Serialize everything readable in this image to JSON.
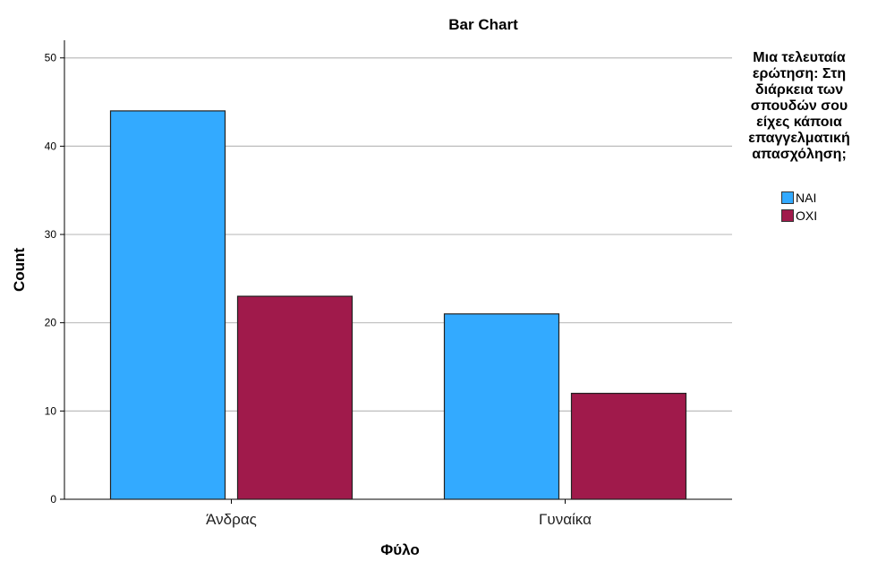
{
  "chart_data": {
    "type": "bar",
    "title": "Bar Chart",
    "xlabel": "Φύλο",
    "ylabel": "Count",
    "categories": [
      "Άνδρας",
      "Γυναίκα"
    ],
    "series": [
      {
        "name": "ΝΑΙ",
        "values": [
          44,
          21
        ],
        "color": "#33aaff"
      },
      {
        "name": "ΟΧΙ",
        "values": [
          23,
          12
        ],
        "color": "#a01a4b"
      }
    ],
    "ylim": [
      0,
      52
    ],
    "yticks": [
      0,
      10,
      20,
      30,
      40,
      50
    ],
    "grid": true,
    "legend": {
      "title": "Μια τελευταία ερώτηση: Στη διάρκεια των σπουδών σου είχες κάποια επαγγελματική απασχόληση;",
      "title_lines": [
        "Μια τελευταία",
        "ερώτηση: Στη",
        "διάρκεια των",
        "σπουδών σου",
        "είχες κάποια",
        "επαγγελματική",
        "απασχόληση;"
      ],
      "position": "right"
    }
  }
}
